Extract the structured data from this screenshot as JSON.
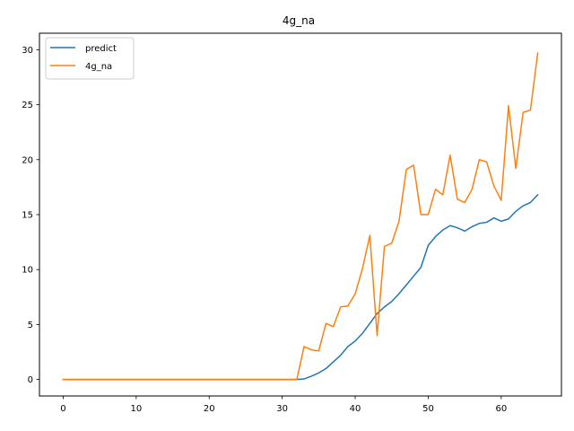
{
  "chart_data": {
    "type": "line",
    "title": "4g_na",
    "xlabel": "",
    "ylabel": "",
    "xlim": [
      -3.25,
      68.25
    ],
    "ylim": [
      -1.5,
      31.5
    ],
    "xticks": [
      0,
      10,
      20,
      30,
      40,
      50,
      60
    ],
    "yticks": [
      0,
      5,
      10,
      15,
      20,
      25,
      30
    ],
    "grid": false,
    "legend_position": "top-left",
    "x": [
      0,
      1,
      2,
      3,
      4,
      5,
      6,
      7,
      8,
      9,
      10,
      11,
      12,
      13,
      14,
      15,
      16,
      17,
      18,
      19,
      20,
      21,
      22,
      23,
      24,
      25,
      26,
      27,
      28,
      29,
      30,
      31,
      32,
      33,
      34,
      35,
      36,
      37,
      38,
      39,
      40,
      41,
      42,
      43,
      44,
      45,
      46,
      47,
      48,
      49,
      50,
      51,
      52,
      53,
      54,
      55,
      56,
      57,
      58,
      59,
      60,
      61,
      62,
      63,
      64,
      65
    ],
    "series": [
      {
        "name": "predict",
        "color": "#1f77b4",
        "values": [
          0,
          0,
          0,
          0,
          0,
          0,
          0,
          0,
          0,
          0,
          0,
          0,
          0,
          0,
          0,
          0,
          0,
          0,
          0,
          0,
          0,
          0,
          0,
          0,
          0,
          0,
          0,
          0,
          0,
          0,
          0,
          0,
          0,
          0.05,
          0.3,
          0.6,
          1.0,
          1.6,
          2.2,
          3.0,
          3.5,
          4.2,
          5.1,
          6.0,
          6.6,
          7.1,
          7.8,
          8.6,
          9.4,
          10.2,
          12.2,
          13.0,
          13.6,
          14.0,
          13.8,
          13.5,
          13.9,
          14.2,
          14.3,
          14.7,
          14.4,
          14.6,
          15.3,
          15.8,
          16.1,
          16.8
        ]
      },
      {
        "name": "4g_na",
        "color": "#ff7f0e",
        "values": [
          0,
          0,
          0,
          0,
          0,
          0,
          0,
          0,
          0,
          0,
          0,
          0,
          0,
          0,
          0,
          0,
          0,
          0,
          0,
          0,
          0,
          0,
          0,
          0,
          0,
          0,
          0,
          0,
          0,
          0,
          0,
          0,
          0,
          3.0,
          2.7,
          2.6,
          5.1,
          4.8,
          6.6,
          6.7,
          7.8,
          10.1,
          13.1,
          4.0,
          12.1,
          12.4,
          14.4,
          19.1,
          19.5,
          15.0,
          15.0,
          17.3,
          16.8,
          20.4,
          16.4,
          16.1,
          17.3,
          20.0,
          19.8,
          17.6,
          16.3,
          24.9,
          19.2,
          24.3,
          24.5,
          29.7
        ]
      }
    ]
  }
}
